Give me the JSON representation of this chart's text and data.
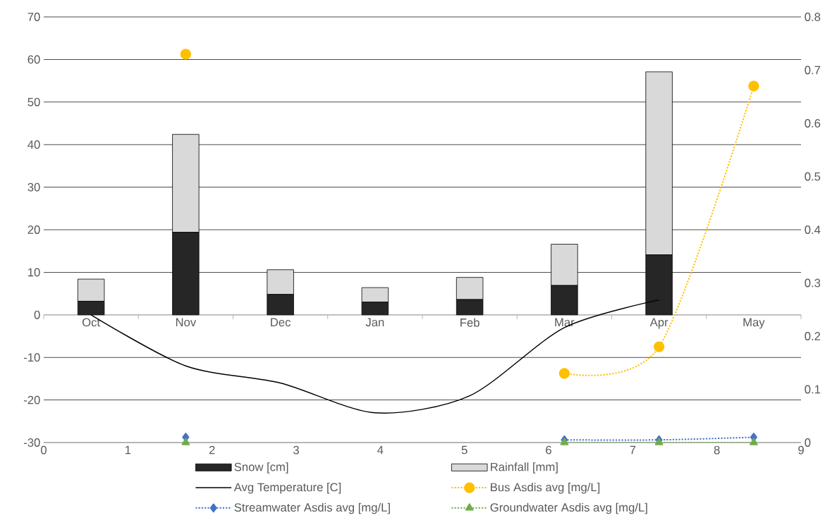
{
  "chart_data": {
    "type": "bar",
    "stacked": true,
    "categories": [
      "Oct",
      "Nov",
      "Dec",
      "Jan",
      "Feb",
      "Mar",
      "Apr",
      "May"
    ],
    "series": [
      {
        "name": "Snow [cm]",
        "color": "#262626",
        "values": [
          3.2,
          19.4,
          4.8,
          3.0,
          3.6,
          6.9,
          14.1,
          null
        ]
      },
      {
        "name": "Rainfall [mm]",
        "color": "#d9d9d9",
        "values": [
          5.2,
          23.0,
          5.8,
          3.4,
          5.2,
          9.7,
          43.0,
          null
        ]
      },
      {
        "name": "Avg Temperature [C]",
        "type": "line",
        "color": "#000000",
        "marker": "none",
        "line_style": "solid",
        "values": [
          0,
          -12,
          -16,
          -23,
          -19,
          -3,
          3.5,
          null
        ]
      },
      {
        "name": "Bus Asdis avg [mg/L]",
        "type": "line",
        "axis": "y2",
        "color": "#ffc000",
        "marker": "circle",
        "line_style": "dotted",
        "values": [
          null,
          0.73,
          null,
          null,
          null,
          0.13,
          0.18,
          0.67
        ]
      },
      {
        "name": "Streamwater Asdis avg [mg/L]",
        "type": "line",
        "axis": "y2",
        "color": "#4472c4",
        "marker": "diamond",
        "line_style": "dotted",
        "values": [
          null,
          0.01,
          null,
          null,
          null,
          0.005,
          0.005,
          0.01
        ]
      },
      {
        "name": "Groundwater Asdis avg [mg/L]",
        "type": "line",
        "axis": "y2",
        "color": "#70ad47",
        "marker": "triangle",
        "line_style": "dotted",
        "values": [
          null,
          0,
          null,
          null,
          null,
          0,
          0,
          0
        ]
      }
    ],
    "ylim": [
      -30,
      70
    ],
    "yticks": [
      -30,
      -20,
      -10,
      0,
      10,
      20,
      30,
      40,
      50,
      60,
      70
    ],
    "x2lim": [
      0,
      9
    ],
    "x2ticks": [
      0,
      1,
      2,
      3,
      4,
      5,
      6,
      7,
      8,
      9
    ],
    "y2lim": [
      0,
      0.8
    ],
    "y2ticks": [
      0,
      0.1,
      0.2,
      0.3,
      0.4,
      0.5,
      0.6,
      0.7,
      0.8
    ],
    "grid": "y",
    "legend": "bottom"
  }
}
